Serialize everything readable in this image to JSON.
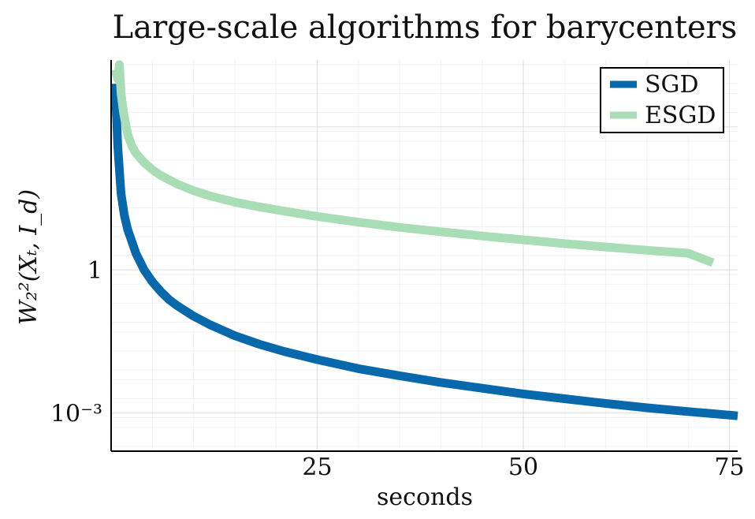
{
  "chart_data": {
    "type": "line",
    "title": "Large-scale algorithms for barycenters",
    "xlabel": "seconds",
    "ylabel": "W₂²(Xₜ, I_d)",
    "xlim": [
      0,
      76
    ],
    "y_scale": "log10",
    "ylim_log10": [
      -3.8,
      4.4
    ],
    "x_ticks": [
      {
        "value": 25,
        "label": "25"
      },
      {
        "value": 50,
        "label": "50"
      },
      {
        "value": 75,
        "label": "75"
      }
    ],
    "y_ticks": [
      {
        "log10": 0,
        "label": "1"
      },
      {
        "log10": -3,
        "label": "10⁻³"
      }
    ],
    "grid": true,
    "legend_position": "top-right",
    "series": [
      {
        "name": "SGD",
        "color": "#0868ac",
        "x": [
          0.5,
          0.8,
          1.2,
          1.6,
          2,
          3,
          4,
          5,
          6,
          7,
          8,
          10,
          12,
          15,
          18,
          21,
          25,
          30,
          35,
          40,
          45,
          50,
          55,
          60,
          65,
          70,
          76
        ],
        "log10_y": [
          3.9,
          2.6,
          1.6,
          1.15,
          0.85,
          0.35,
          0.0,
          -0.25,
          -0.45,
          -0.62,
          -0.75,
          -0.97,
          -1.15,
          -1.38,
          -1.56,
          -1.71,
          -1.88,
          -2.07,
          -2.22,
          -2.36,
          -2.48,
          -2.6,
          -2.7,
          -2.8,
          -2.89,
          -2.97,
          -3.06
        ]
      },
      {
        "name": "ESGD",
        "color": "#a8ddb5",
        "x": [
          0.5,
          0.8,
          1.0,
          1.2,
          1.5,
          2,
          2.5,
          3,
          4,
          5,
          6,
          8,
          10,
          12,
          15,
          18,
          21,
          25,
          30,
          35,
          40,
          45,
          50,
          55,
          60,
          65,
          70,
          73
        ],
        "log10_y": [
          4.2,
          4.0,
          4.3,
          3.7,
          3.3,
          2.85,
          2.6,
          2.45,
          2.25,
          2.1,
          1.98,
          1.8,
          1.66,
          1.55,
          1.42,
          1.32,
          1.23,
          1.12,
          1.0,
          0.89,
          0.8,
          0.71,
          0.63,
          0.55,
          0.48,
          0.41,
          0.35,
          0.15
        ]
      }
    ]
  }
}
